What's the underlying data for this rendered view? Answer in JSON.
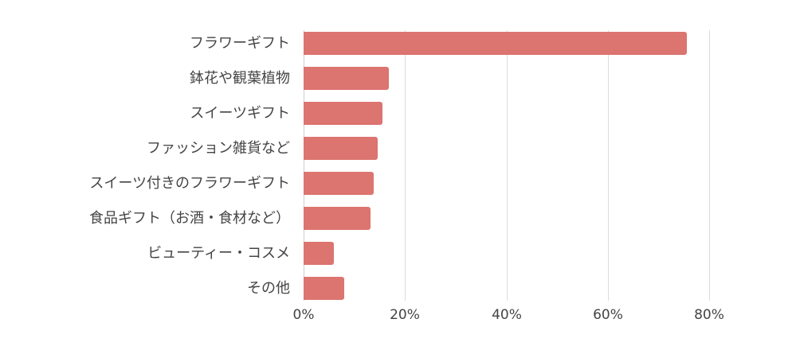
{
  "chart_data": {
    "type": "bar",
    "orientation": "horizontal",
    "title": "",
    "xlabel": "",
    "ylabel": "",
    "categories": [
      "フラワーギフト",
      "鉢花や観葉植物",
      "スイーツギフト",
      "ファッション雑貨など",
      "スイーツ付きのフラワーギフト",
      "食品ギフト（お酒・食材など）",
      "ビューティー・コスメ",
      "その他"
    ],
    "values": [
      75.6,
      16.8,
      15.6,
      14.6,
      13.8,
      13.2,
      6.0,
      8.0
    ],
    "unit": "%",
    "xlim": [
      0,
      80
    ],
    "x_ticks": [
      "0%",
      "20%",
      "40%",
      "60%",
      "80%"
    ],
    "grid": true,
    "legend": null,
    "bar_color": "#dc7470"
  }
}
